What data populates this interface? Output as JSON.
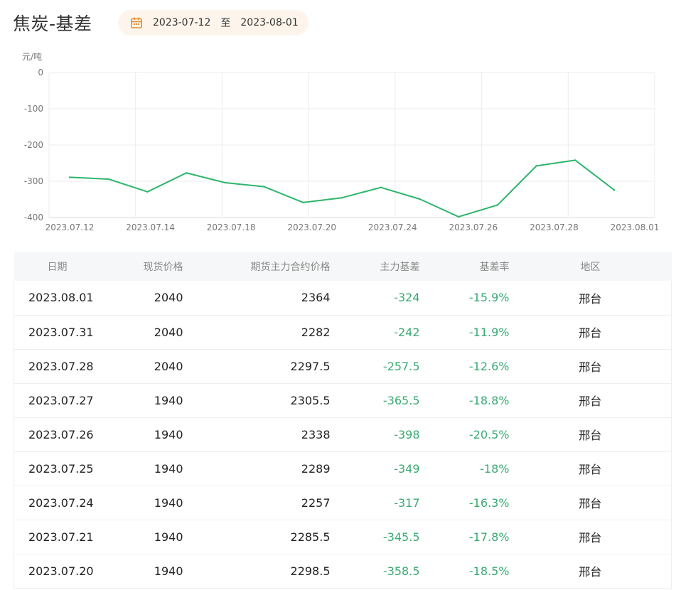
{
  "header": {
    "title": "焦炭-基差",
    "start_date": "2023-07-12",
    "separator": "至",
    "end_date": "2023-08-01"
  },
  "colors": {
    "line": "#2db56b",
    "negative_value": "#3aaa73",
    "date_pill_bg": "#fdf5ec",
    "calendar_icon": "#e08a2e"
  },
  "icons": {
    "date_picker": "calendar-icon"
  },
  "chart_data": {
    "type": "line",
    "ylabel": "元/吨",
    "ylim": [
      -400,
      0
    ],
    "yticks": [
      0,
      -100,
      -200,
      -300,
      -400
    ],
    "grid": true,
    "x": [
      "2023.07.12",
      "2023.07.13",
      "2023.07.14",
      "2023.07.17",
      "2023.07.18",
      "2023.07.19",
      "2023.07.20",
      "2023.07.21",
      "2023.07.24",
      "2023.07.25",
      "2023.07.26",
      "2023.07.27",
      "2023.07.28",
      "2023.07.31",
      "2023.08.01"
    ],
    "xtick_labels": [
      "2023.07.12",
      "2023.07.14",
      "2023.07.18",
      "2023.07.20",
      "2023.07.24",
      "2023.07.26",
      "2023.07.28",
      "2023.08.01"
    ],
    "series": [
      {
        "values": [
          -289,
          -294,
          -329,
          -277,
          -304,
          -315,
          -358.5,
          -345.5,
          -317,
          -349,
          -398,
          -365.5,
          -257.5,
          -242,
          -324
        ]
      }
    ]
  },
  "table": {
    "headers": {
      "date": "日期",
      "spot": "现货价格",
      "futures": "期货主力合约价格",
      "basis": "主力基差",
      "rate": "基差率",
      "region": "地区"
    },
    "rows": [
      {
        "date": "2023.08.01",
        "spot": "2040",
        "futures": "2364",
        "basis": "-324",
        "rate": "-15.9%",
        "region": "邢台"
      },
      {
        "date": "2023.07.31",
        "spot": "2040",
        "futures": "2282",
        "basis": "-242",
        "rate": "-11.9%",
        "region": "邢台"
      },
      {
        "date": "2023.07.28",
        "spot": "2040",
        "futures": "2297.5",
        "basis": "-257.5",
        "rate": "-12.6%",
        "region": "邢台"
      },
      {
        "date": "2023.07.27",
        "spot": "1940",
        "futures": "2305.5",
        "basis": "-365.5",
        "rate": "-18.8%",
        "region": "邢台"
      },
      {
        "date": "2023.07.26",
        "spot": "1940",
        "futures": "2338",
        "basis": "-398",
        "rate": "-20.5%",
        "region": "邢台"
      },
      {
        "date": "2023.07.25",
        "spot": "1940",
        "futures": "2289",
        "basis": "-349",
        "rate": "-18%",
        "region": "邢台"
      },
      {
        "date": "2023.07.24",
        "spot": "1940",
        "futures": "2257",
        "basis": "-317",
        "rate": "-16.3%",
        "region": "邢台"
      },
      {
        "date": "2023.07.21",
        "spot": "1940",
        "futures": "2285.5",
        "basis": "-345.5",
        "rate": "-17.8%",
        "region": "邢台"
      },
      {
        "date": "2023.07.20",
        "spot": "1940",
        "futures": "2298.5",
        "basis": "-358.5",
        "rate": "-18.5%",
        "region": "邢台"
      }
    ]
  }
}
